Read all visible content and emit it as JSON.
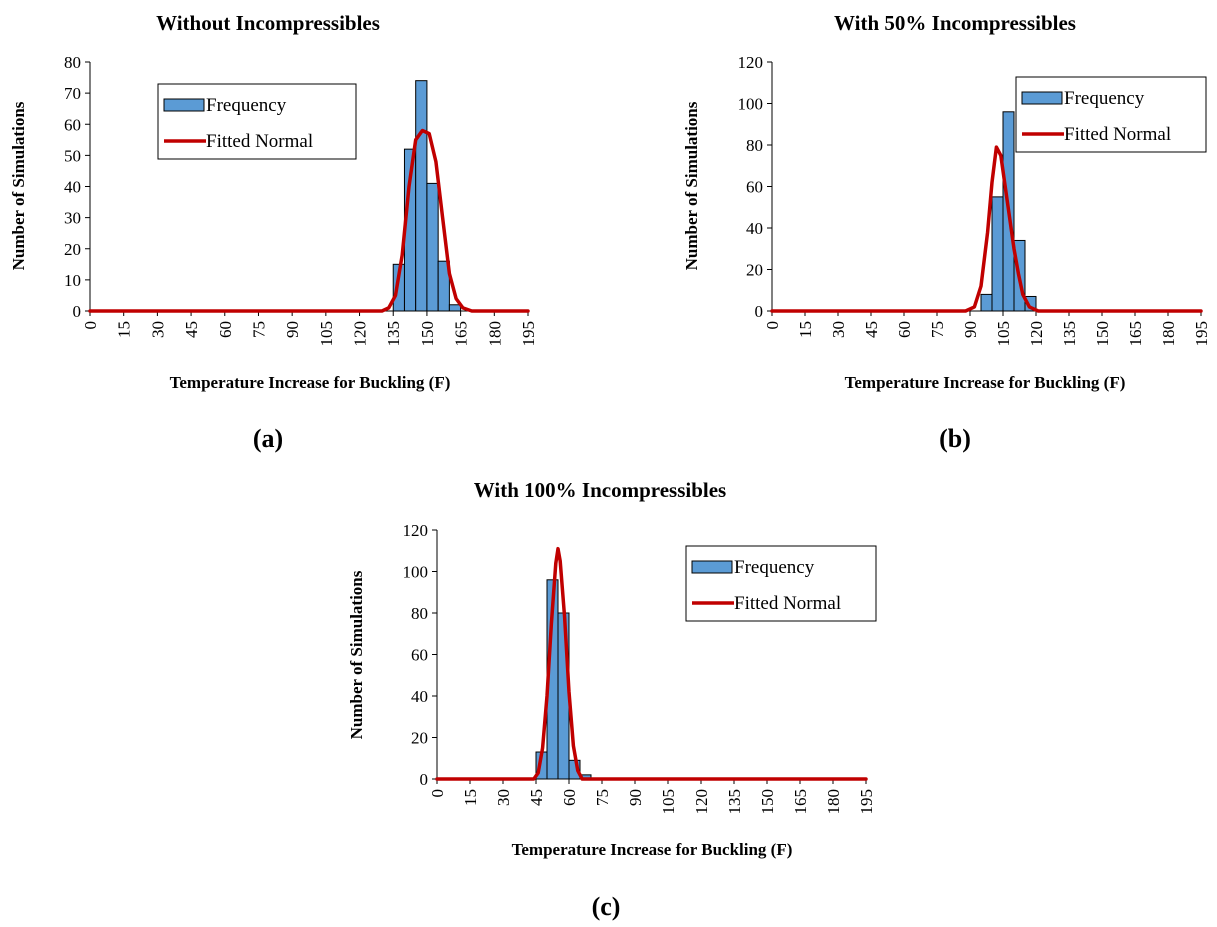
{
  "chart_data": [
    {
      "type": "bar",
      "title": "Without Incompressibles",
      "panel_label": "(a)",
      "xlabel": "Temperature Increase for Buckling (F)",
      "ylabel": "Number of Simulations",
      "ylim": [
        0,
        80
      ],
      "yticks": [
        "0",
        "10",
        "20",
        "30",
        "40",
        "50",
        "60",
        "70",
        "80"
      ],
      "categories": [
        "0",
        "15",
        "30",
        "45",
        "60",
        "75",
        "90",
        "105",
        "120",
        "135",
        "150",
        "165",
        "180",
        "195"
      ],
      "bin_width": 5,
      "legend": {
        "position": "top-left",
        "entries": [
          "Frequency",
          "Fitted Normal"
        ]
      },
      "series": [
        {
          "name": "Frequency",
          "type": "bar",
          "color": "#5B9BD5",
          "x": [
            140,
            145,
            150,
            155,
            160,
            165
          ],
          "values": [
            15,
            52,
            74,
            41,
            16,
            2
          ]
        },
        {
          "name": "Fitted Normal",
          "type": "line",
          "color": "#C00000",
          "x": [
            0,
            130,
            133,
            136,
            139,
            142,
            145,
            148,
            151,
            154,
            157,
            160,
            163,
            166,
            170,
            195
          ],
          "values": [
            0,
            0,
            1,
            5,
            18,
            40,
            55,
            58,
            57,
            48,
            30,
            12,
            4,
            1,
            0,
            0
          ]
        }
      ]
    },
    {
      "type": "bar",
      "title": "With 50% Incompressibles",
      "panel_label": "(b)",
      "xlabel": "Temperature Increase for Buckling (F)",
      "ylabel": "Number of Simulations",
      "ylim": [
        0,
        120
      ],
      "yticks": [
        "0",
        "20",
        "40",
        "60",
        "80",
        "100",
        "120"
      ],
      "categories": [
        "0",
        "15",
        "30",
        "45",
        "60",
        "75",
        "90",
        "105",
        "120",
        "135",
        "150",
        "165",
        "180",
        "195"
      ],
      "bin_width": 5,
      "legend": {
        "position": "top-right",
        "entries": [
          "Frequency",
          "Fitted Normal"
        ]
      },
      "series": [
        {
          "name": "Frequency",
          "type": "bar",
          "color": "#5B9BD5",
          "x": [
            100,
            105,
            110,
            115,
            120
          ],
          "values": [
            8,
            55,
            96,
            34,
            7
          ]
        },
        {
          "name": "Fitted Normal",
          "type": "line",
          "color": "#C00000",
          "x": [
            0,
            88,
            92,
            95,
            98,
            100,
            102,
            104,
            106,
            108,
            110,
            112,
            114,
            117,
            121,
            195
          ],
          "values": [
            0,
            0,
            2,
            12,
            38,
            62,
            79,
            75,
            60,
            45,
            30,
            18,
            8,
            2,
            0,
            0
          ]
        }
      ]
    },
    {
      "type": "bar",
      "title": "With 100% Incompressibles",
      "panel_label": "(c)",
      "xlabel": "Temperature Increase for Buckling (F)",
      "ylabel": "Number of Simulations",
      "ylim": [
        0,
        120
      ],
      "yticks": [
        "0",
        "20",
        "40",
        "60",
        "80",
        "100",
        "120"
      ],
      "categories": [
        "0",
        "15",
        "30",
        "45",
        "60",
        "75",
        "90",
        "105",
        "120",
        "135",
        "150",
        "165",
        "180",
        "195"
      ],
      "bin_width": 5,
      "legend": {
        "position": "top-right",
        "entries": [
          "Frequency",
          "Fitted Normal"
        ]
      },
      "series": [
        {
          "name": "Frequency",
          "type": "bar",
          "color": "#5B9BD5",
          "x": [
            50,
            55,
            60,
            65,
            70
          ],
          "values": [
            13,
            96,
            80,
            9,
            2
          ]
        },
        {
          "name": "Fitted Normal",
          "type": "line",
          "color": "#C00000",
          "x": [
            0,
            44,
            46,
            48,
            50,
            52,
            54,
            55,
            56,
            58,
            60,
            62,
            64,
            66,
            195
          ],
          "values": [
            0,
            0,
            3,
            15,
            40,
            75,
            104,
            111,
            105,
            78,
            42,
            16,
            4,
            0,
            0
          ]
        }
      ]
    }
  ]
}
